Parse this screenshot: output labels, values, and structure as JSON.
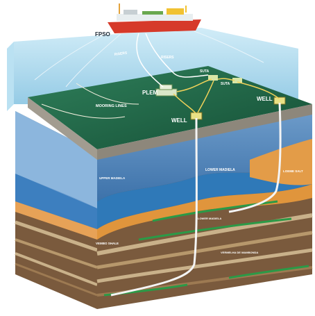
{
  "labels": {
    "fpso": "FPSO",
    "riser_left": "RISERS",
    "riser_right": "RISERS",
    "plem": "PLEM",
    "suta_top": "SUTA",
    "suta_bottom": "SUTA",
    "mooring": "MOORING LINES",
    "well_left": "WELL",
    "well_right": "WELL",
    "upper_madiela": "UPPER MADIELA",
    "lower_madiela": "LOWER MADIELA",
    "aquifer_salt": "LOEME SALT",
    "vembo_shale": "VEMBO SHALE",
    "lower_layer": "LOWER MADIELA",
    "deep_layer": "VERMELHA DE MAMBONDA"
  },
  "colors": {
    "sea_water": "#9fd2ea",
    "seabed_top": "#1f6a4b",
    "seabed_edge": "#9a968e",
    "upper_sediment": "#5a8fc1",
    "blue_layer": "#2f79b8",
    "orange_layer": "#e0953c",
    "brown_layer": "#7a5a3d",
    "green_seam": "#2b9a47",
    "ship_hull": "#d63a2a",
    "well_pipe": "#f4f4f4"
  }
}
